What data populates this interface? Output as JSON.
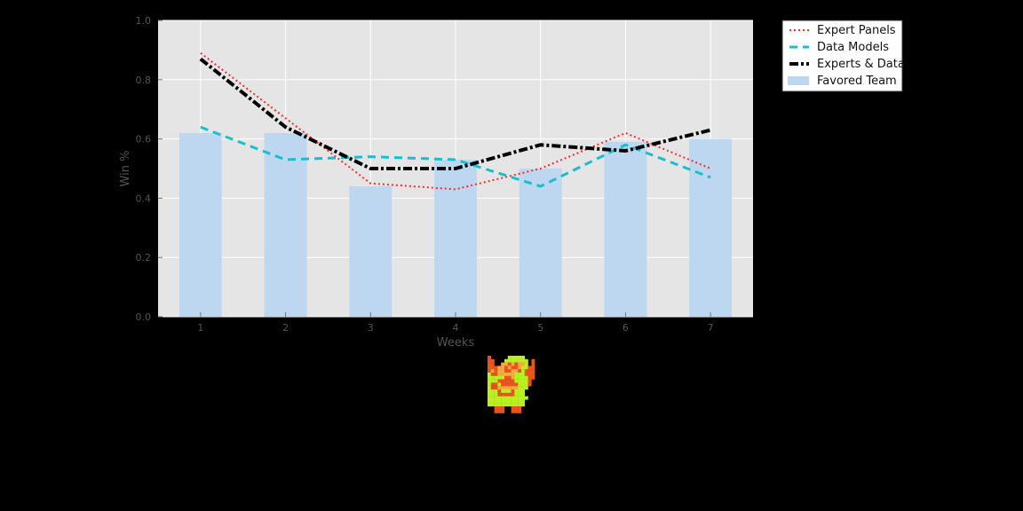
{
  "chart_data": {
    "type": "bar",
    "xlabel": "Weeks",
    "ylabel": "Win %",
    "xlim": [
      0.5,
      7.5
    ],
    "ylim": [
      0.0,
      1.0
    ],
    "x_ticks": [
      1,
      2,
      3,
      4,
      5,
      6,
      7
    ],
    "y_ticks": [
      0.0,
      0.2,
      0.4,
      0.6,
      0.8,
      1.0
    ],
    "y_tick_labels": [
      "0.0",
      "0.2",
      "0.4",
      "0.6",
      "0.8",
      "1.0"
    ],
    "grid": true,
    "legend_position": "outside-top-right",
    "bars": {
      "name": "Favored Team",
      "color": "#bdd7f0",
      "x": [
        1,
        2,
        3,
        4,
        5,
        6,
        7
      ],
      "values": [
        0.62,
        0.62,
        0.44,
        0.53,
        0.5,
        0.59,
        0.6
      ]
    },
    "series": [
      {
        "name": "Expert Panels",
        "color": "#ff2a2a",
        "style": "dotted",
        "x": [
          1,
          2,
          3,
          4,
          5,
          6,
          7
        ],
        "values": [
          0.89,
          0.67,
          0.45,
          0.43,
          0.5,
          0.62,
          0.5
        ]
      },
      {
        "name": "Data Models",
        "color": "#17bfcc",
        "style": "dashed",
        "x": [
          1,
          2,
          3,
          4,
          5,
          6,
          7
        ],
        "values": [
          0.64,
          0.53,
          0.54,
          0.53,
          0.44,
          0.58,
          0.47
        ]
      },
      {
        "name": "Experts & Data",
        "color": "#000000",
        "style": "dashdot",
        "x": [
          1,
          2,
          3,
          4,
          5,
          6,
          7
        ],
        "values": [
          0.87,
          0.64,
          0.5,
          0.5,
          0.58,
          0.56,
          0.63
        ]
      }
    ]
  },
  "colors": {
    "page_background": "#000000",
    "plot_background": "#e5e5e5",
    "grid": "#ffffff"
  },
  "sprite": {
    "icon": "pixel-hero-icon"
  }
}
